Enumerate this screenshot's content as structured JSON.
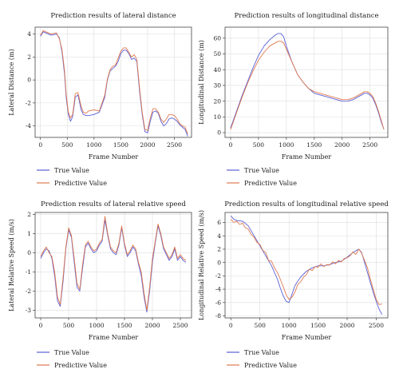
{
  "figure": {
    "legend_true": "True Value",
    "legend_pred": "Predictive Value",
    "colors": {
      "true": "#5b5fd6",
      "pred": "#e07a50",
      "axes": "#444444",
      "grid": "#dddddd"
    }
  },
  "chart_data": [
    {
      "type": "line",
      "title": "Prediction results of lateral distance",
      "xlabel": "Frame Number",
      "ylabel": "Lateral Distance (m)",
      "xlim": [
        -100,
        2820
      ],
      "ylim": [
        -5,
        4.6
      ],
      "xticks": [
        0,
        500,
        1000,
        1500,
        2000,
        2500
      ],
      "yticks": [
        -4,
        -2,
        0,
        2,
        4
      ],
      "grid": true,
      "legend": "below",
      "series": [
        {
          "name": "True Value",
          "x": [
            0,
            50,
            100,
            200,
            300,
            350,
            400,
            450,
            480,
            520,
            560,
            600,
            650,
            700,
            760,
            800,
            850,
            900,
            1000,
            1100,
            1200,
            1250,
            1300,
            1350,
            1400,
            1450,
            1500,
            1550,
            1600,
            1650,
            1700,
            1750,
            1800,
            1850,
            1900,
            1950,
            2000,
            2050,
            2100,
            2150,
            2200,
            2250,
            2300,
            2350,
            2400,
            2450,
            2500,
            2550,
            2600,
            2650,
            2700,
            2750
          ],
          "y": [
            3.8,
            4.2,
            4.1,
            3.9,
            4.0,
            3.7,
            2.5,
            0.5,
            -1.5,
            -3.0,
            -3.6,
            -3.2,
            -1.5,
            -1.3,
            -2.6,
            -3.0,
            -3.1,
            -3.1,
            -3.0,
            -2.8,
            -1.5,
            0.0,
            0.8,
            1.0,
            1.2,
            1.6,
            2.3,
            2.6,
            2.6,
            2.3,
            1.8,
            1.9,
            1.6,
            -1.0,
            -3.0,
            -4.5,
            -4.6,
            -3.6,
            -2.8,
            -2.7,
            -2.9,
            -3.6,
            -4.0,
            -3.8,
            -3.4,
            -3.3,
            -3.4,
            -3.6,
            -3.9,
            -4.1,
            -4.3,
            -4.9
          ]
        },
        {
          "name": "Predictive Value",
          "x": [
            0,
            50,
            100,
            200,
            300,
            350,
            400,
            450,
            480,
            520,
            560,
            600,
            650,
            700,
            760,
            800,
            850,
            900,
            1000,
            1100,
            1200,
            1250,
            1300,
            1350,
            1400,
            1450,
            1500,
            1550,
            1600,
            1650,
            1700,
            1750,
            1800,
            1850,
            1900,
            1950,
            2000,
            2050,
            2100,
            2150,
            2200,
            2250,
            2300,
            2350,
            2400,
            2450,
            2500,
            2550,
            2600,
            2650,
            2700,
            2750
          ],
          "y": [
            3.9,
            4.3,
            4.2,
            4.0,
            4.1,
            3.6,
            2.7,
            0.8,
            -1.2,
            -2.8,
            -3.3,
            -3.0,
            -1.2,
            -1.1,
            -2.3,
            -2.8,
            -2.9,
            -2.7,
            -2.6,
            -2.7,
            -1.3,
            0.1,
            0.9,
            1.2,
            1.3,
            1.9,
            2.5,
            2.8,
            2.8,
            2.4,
            2.0,
            2.2,
            1.8,
            -0.7,
            -2.8,
            -4.3,
            -4.4,
            -3.3,
            -2.5,
            -2.5,
            -2.8,
            -3.4,
            -3.7,
            -3.4,
            -3.0,
            -3.0,
            -3.1,
            -3.4,
            -3.8,
            -4.0,
            -4.1,
            -4.7
          ]
        }
      ]
    },
    {
      "type": "line",
      "title": "Prediction results of longitudinal distance",
      "xlabel": "Frame Number",
      "ylabel": "Longitudinal Distance (m)",
      "xlim": [
        -100,
        2820
      ],
      "ylim": [
        -3,
        67
      ],
      "xticks": [
        0,
        500,
        1000,
        1500,
        2000,
        2500
      ],
      "yticks": [
        0,
        10,
        20,
        30,
        40,
        50,
        60
      ],
      "grid": true,
      "legend": "below",
      "series": [
        {
          "name": "True Value",
          "x": [
            0,
            100,
            200,
            300,
            400,
            500,
            600,
            700,
            800,
            850,
            900,
            950,
            1000,
            1100,
            1200,
            1300,
            1400,
            1500,
            1600,
            1700,
            1800,
            1900,
            2000,
            2100,
            2200,
            2300,
            2350,
            2400,
            2450,
            2500,
            2550,
            2600,
            2650,
            2700,
            2750
          ],
          "y": [
            3,
            13,
            23,
            32,
            41,
            49,
            55,
            59,
            62,
            63,
            63,
            61,
            55,
            45,
            37,
            32,
            28,
            25,
            24,
            23,
            22,
            21,
            20,
            20,
            21,
            23,
            24,
            25,
            25,
            24,
            22,
            18,
            13,
            7,
            2
          ]
        },
        {
          "name": "Predictive Value",
          "x": [
            0,
            100,
            200,
            300,
            400,
            500,
            600,
            700,
            800,
            850,
            900,
            950,
            1000,
            1100,
            1200,
            1300,
            1400,
            1500,
            1600,
            1700,
            1800,
            1900,
            2000,
            2100,
            2200,
            2300,
            2350,
            2400,
            2450,
            2500,
            2550,
            2600,
            2650,
            2700,
            2750
          ],
          "y": [
            2,
            12,
            22,
            31,
            39,
            46,
            51,
            55,
            57,
            58,
            58,
            57,
            53,
            45,
            37,
            32,
            28,
            26,
            25,
            24,
            23,
            22,
            21,
            21,
            22,
            24,
            25,
            26,
            26,
            25,
            23,
            19,
            14,
            8,
            2
          ]
        }
      ]
    },
    {
      "type": "line",
      "title": "Prediction results of lateral relative speed",
      "xlabel": "Frame Number",
      "ylabel": "Lateral Relative Speed (m/s)",
      "xlim": [
        -100,
        2700
      ],
      "ylim": [
        -3.4,
        2.1
      ],
      "xticks": [
        0,
        500,
        1000,
        1500,
        2000,
        2500
      ],
      "yticks": [
        -3,
        -2,
        -1,
        0,
        1,
        2
      ],
      "grid": true,
      "legend": "below",
      "series": [
        {
          "name": "True Value",
          "x": [
            0,
            50,
            100,
            150,
            200,
            250,
            300,
            350,
            400,
            450,
            500,
            550,
            600,
            650,
            700,
            750,
            800,
            850,
            900,
            950,
            1000,
            1050,
            1100,
            1150,
            1200,
            1250,
            1300,
            1350,
            1400,
            1450,
            1500,
            1550,
            1600,
            1650,
            1700,
            1750,
            1800,
            1850,
            1900,
            1950,
            2000,
            2050,
            2100,
            2150,
            2200,
            2250,
            2300,
            2350,
            2400,
            2450,
            2500,
            2550,
            2600
          ],
          "y": [
            -0.3,
            0.0,
            0.2,
            0.1,
            -0.3,
            -1.2,
            -2.5,
            -2.8,
            -1.5,
            0.2,
            1.2,
            0.8,
            -0.5,
            -1.8,
            -2.0,
            -0.8,
            0.3,
            0.5,
            0.2,
            0.0,
            0.1,
            0.4,
            0.6,
            1.7,
            0.9,
            0.2,
            0.0,
            -0.1,
            0.4,
            1.3,
            0.4,
            -0.2,
            0.0,
            0.3,
            0.1,
            -0.6,
            -1.2,
            -2.3,
            -3.1,
            -2.0,
            -0.5,
            0.5,
            1.4,
            0.9,
            0.2,
            -0.1,
            -0.4,
            -0.2,
            0.2,
            -0.4,
            -0.2,
            -0.4,
            -0.5
          ]
        },
        {
          "name": "Predictive Value",
          "x": [
            0,
            50,
            100,
            150,
            200,
            250,
            300,
            350,
            400,
            450,
            500,
            550,
            600,
            650,
            700,
            750,
            800,
            850,
            900,
            950,
            1000,
            1050,
            1100,
            1150,
            1200,
            1250,
            1300,
            1350,
            1400,
            1450,
            1500,
            1550,
            1600,
            1650,
            1700,
            1750,
            1800,
            1850,
            1900,
            1950,
            2000,
            2050,
            2100,
            2150,
            2200,
            2250,
            2300,
            2350,
            2400,
            2450,
            2500,
            2550,
            2600
          ],
          "y": [
            -0.2,
            0.1,
            0.3,
            0.0,
            -0.2,
            -1.0,
            -2.3,
            -2.7,
            -1.3,
            0.3,
            1.3,
            0.9,
            -0.3,
            -1.6,
            -1.9,
            -0.6,
            0.4,
            0.6,
            0.3,
            0.1,
            0.2,
            0.5,
            0.7,
            1.9,
            1.0,
            0.3,
            0.1,
            0.0,
            0.5,
            1.4,
            0.5,
            -0.1,
            0.1,
            0.4,
            0.2,
            -0.5,
            -1.0,
            -2.1,
            -3.0,
            -1.8,
            -0.3,
            0.6,
            1.5,
            1.0,
            0.3,
            0.0,
            -0.3,
            -0.1,
            0.3,
            -0.3,
            -0.1,
            -0.3,
            -0.4
          ]
        }
      ]
    },
    {
      "type": "line",
      "title": "Prediction results of longitudinal relative speed",
      "xlabel": "Frame Number",
      "ylabel": "Longitudinal Relative Speed (m/s)",
      "xlim": [
        -100,
        2700
      ],
      "ylim": [
        -8.3,
        7.5
      ],
      "xticks": [
        0,
        500,
        1000,
        1500,
        2000,
        2500
      ],
      "yticks": [
        -8,
        -6,
        -4,
        -2,
        0,
        2,
        4,
        6
      ],
      "grid": true,
      "legend": "below",
      "series": [
        {
          "name": "True Value",
          "x": [
            0,
            50,
            100,
            200,
            300,
            400,
            500,
            600,
            700,
            800,
            850,
            900,
            950,
            1000,
            1050,
            1100,
            1150,
            1200,
            1300,
            1400,
            1500,
            1600,
            1700,
            1800,
            1900,
            2000,
            2100,
            2200,
            2250,
            2300,
            2350,
            2400,
            2450,
            2500,
            2550,
            2600
          ],
          "y": [
            7.0,
            6.5,
            6.3,
            6.2,
            5.5,
            4.0,
            2.5,
            1.0,
            -0.5,
            -2.5,
            -3.8,
            -5.0,
            -5.8,
            -6.0,
            -4.8,
            -3.5,
            -2.8,
            -2.2,
            -1.3,
            -0.8,
            -0.5,
            -0.5,
            -0.3,
            0.0,
            0.2,
            0.8,
            1.5,
            2.0,
            1.5,
            0.0,
            -1.5,
            -3.0,
            -4.5,
            -5.8,
            -7.0,
            -7.8
          ]
        },
        {
          "name": "Predictive Value",
          "x": [
            0,
            50,
            100,
            150,
            200,
            250,
            300,
            350,
            400,
            450,
            500,
            550,
            600,
            650,
            700,
            750,
            800,
            850,
            900,
            950,
            1000,
            1050,
            1100,
            1150,
            1200,
            1250,
            1300,
            1350,
            1400,
            1450,
            1500,
            1550,
            1600,
            1650,
            1700,
            1750,
            1800,
            1850,
            1900,
            1950,
            2000,
            2050,
            2100,
            2150,
            2200,
            2250,
            2300,
            2350,
            2400,
            2450,
            2500,
            2550,
            2600
          ],
          "y": [
            6.5,
            6.0,
            6.2,
            5.7,
            5.9,
            5.2,
            5.0,
            4.2,
            3.8,
            3.0,
            2.7,
            1.8,
            1.5,
            0.3,
            0.2,
            -0.8,
            -1.5,
            -2.5,
            -3.6,
            -4.8,
            -5.5,
            -5.2,
            -4.5,
            -3.3,
            -2.9,
            -2.2,
            -1.8,
            -1.0,
            -1.2,
            -0.6,
            -0.7,
            -0.2,
            -0.6,
            -0.3,
            -0.4,
            0.1,
            -0.2,
            0.3,
            0.1,
            0.6,
            0.7,
            1.0,
            1.6,
            1.2,
            2.0,
            1.4,
            0.3,
            -0.8,
            -2.5,
            -4.0,
            -5.5,
            -6.3,
            -6.2
          ]
        }
      ]
    }
  ]
}
